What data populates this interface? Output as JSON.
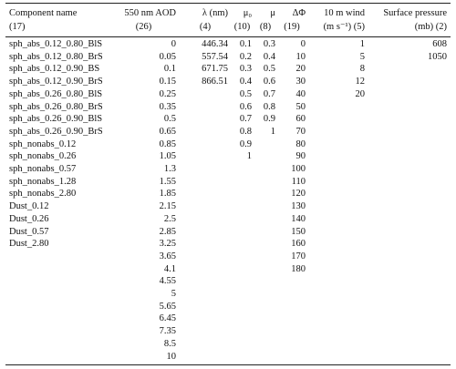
{
  "table": {
    "columns": [
      {
        "header": [
          "Component name",
          "(17)"
        ],
        "values": [
          "sph_abs_0.12_0.80_BlS",
          "sph_abs_0.12_0.80_BrS",
          "sph_abs_0.12_0.90_BS",
          "sph_abs_0.12_0.90_BrS",
          "sph_abs_0.26_0.80_BlS",
          "sph_abs_0.26_0.80_BrS",
          "sph_abs_0.26_0.90_BlS",
          "sph_abs_0.26_0.90_BrS",
          "sph_nonabs_0.12",
          "sph_nonabs_0.26",
          "sph_nonabs_0.57",
          "sph_nonabs_1.28",
          "sph_nonabs_2.80",
          "Dust_0.12",
          "Dust_0.26",
          "Dust_0.57",
          "Dust_2.80"
        ]
      },
      {
        "header": [
          "550 nm AOD",
          "(26)"
        ],
        "values": [
          0,
          0.05,
          0.1,
          0.15,
          0.25,
          0.35,
          0.5,
          0.65,
          0.85,
          1.05,
          1.3,
          1.55,
          1.85,
          2.15,
          2.5,
          2.85,
          3.25,
          3.65,
          4.1,
          4.55,
          5,
          5.65,
          6.45,
          7.35,
          8.5,
          10
        ]
      },
      {
        "header": [
          "λ (nm)",
          "(4)"
        ],
        "values": [
          446.34,
          557.54,
          671.75,
          866.51
        ]
      },
      {
        "header": [
          "μ₀",
          "(10)"
        ],
        "values": [
          0.1,
          0.2,
          0.3,
          0.4,
          0.5,
          0.6,
          0.7,
          0.8,
          0.9,
          1
        ]
      },
      {
        "header": [
          "μ",
          "(8)"
        ],
        "values": [
          0.3,
          0.4,
          0.5,
          0.6,
          0.7,
          0.8,
          0.9,
          1
        ]
      },
      {
        "header": [
          "ΔΦ",
          "(19)"
        ],
        "values": [
          0,
          10,
          20,
          30,
          40,
          50,
          60,
          70,
          80,
          90,
          100,
          110,
          120,
          130,
          140,
          150,
          160,
          170,
          180
        ]
      },
      {
        "header": [
          "10 m wind",
          "(m s⁻¹) (5)"
        ],
        "values": [
          1,
          5,
          8,
          12,
          20
        ]
      },
      {
        "header": [
          "Surface pressure",
          "(mb) (2)"
        ],
        "values": [
          608,
          1050
        ]
      }
    ]
  }
}
